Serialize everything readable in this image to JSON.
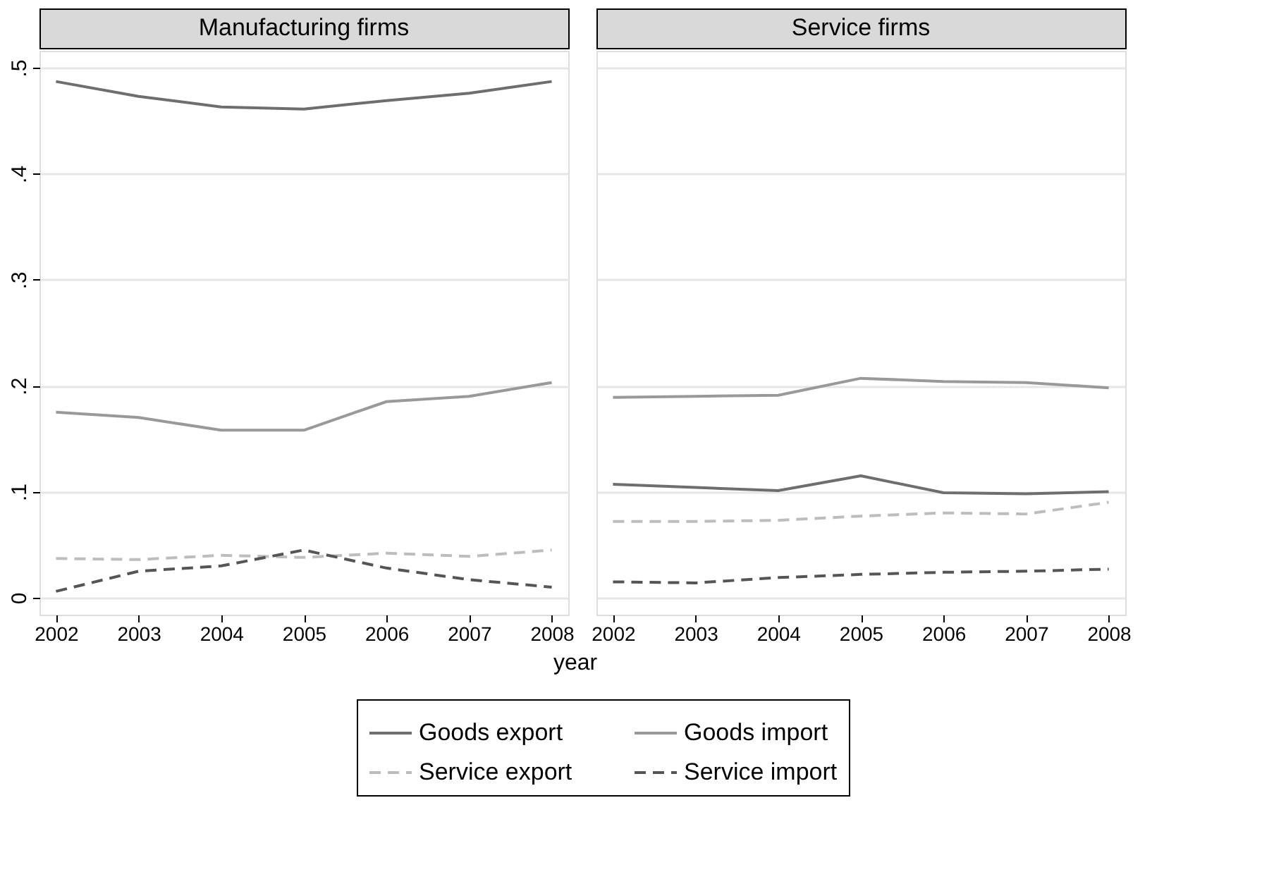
{
  "chart_data": [
    {
      "type": "line",
      "title": "Manufacturing firms",
      "xlabel": "year",
      "x": [
        2002,
        2003,
        2004,
        2005,
        2006,
        2007,
        2008
      ],
      "xlim": [
        2001.8,
        2008.2
      ],
      "xticks": [
        2002,
        2003,
        2004,
        2005,
        2006,
        2007,
        2008
      ],
      "ylim": [
        -0.016,
        0.516
      ],
      "yticks": [
        {
          "value": 0,
          "label": "0"
        },
        {
          "value": 0.1,
          "label": ".1"
        },
        {
          "value": 0.2,
          "label": ".2"
        },
        {
          "value": 0.3,
          "label": ".3"
        },
        {
          "value": 0.4,
          "label": ".4"
        },
        {
          "value": 0.5,
          "label": ".5"
        }
      ],
      "grid": "y",
      "legend": "bottom",
      "series": [
        {
          "name": "Goods export",
          "color": "#6e6e6e",
          "line_style": "solid",
          "values": [
            0.487,
            0.473,
            0.463,
            0.461,
            0.469,
            0.476,
            0.487
          ]
        },
        {
          "name": "Service export",
          "color": "#bdbdbd",
          "line_style": "dashed",
          "values": [
            0.037,
            0.036,
            0.04,
            0.038,
            0.042,
            0.039,
            0.045
          ]
        },
        {
          "name": "Goods import",
          "color": "#999999",
          "line_style": "solid",
          "values": [
            0.175,
            0.17,
            0.158,
            0.158,
            0.185,
            0.19,
            0.203
          ]
        },
        {
          "name": "Service import",
          "color": "#555555",
          "line_style": "dashed",
          "values": [
            0.006,
            0.025,
            0.03,
            0.045,
            0.028,
            0.017,
            0.01
          ]
        }
      ]
    },
    {
      "type": "line",
      "title": "Service firms",
      "x": [
        2002,
        2003,
        2004,
        2005,
        2006,
        2007,
        2008
      ],
      "xlim": [
        2001.8,
        2008.2
      ],
      "xticks": [
        2002,
        2003,
        2004,
        2005,
        2006,
        2007,
        2008
      ],
      "ylim": [
        -0.016,
        0.516
      ],
      "yticks": [
        0,
        0.1,
        0.2,
        0.3,
        0.4,
        0.5
      ],
      "tick_labels": "x",
      "grid": "y",
      "legend": "bottom",
      "series": [
        {
          "name": "Goods export",
          "color": "#6e6e6e",
          "line_style": "solid",
          "values": [
            0.107,
            0.104,
            0.101,
            0.115,
            0.099,
            0.098,
            0.1
          ]
        },
        {
          "name": "Service export",
          "color": "#bdbdbd",
          "line_style": "dashed",
          "values": [
            0.072,
            0.072,
            0.073,
            0.077,
            0.08,
            0.079,
            0.09
          ]
        },
        {
          "name": "Goods import",
          "color": "#999999",
          "line_style": "solid",
          "values": [
            0.189,
            0.19,
            0.191,
            0.207,
            0.204,
            0.203,
            0.198
          ]
        },
        {
          "name": "Service import",
          "color": "#555555",
          "line_style": "dashed",
          "values": [
            0.015,
            0.014,
            0.019,
            0.022,
            0.024,
            0.025,
            0.027
          ]
        }
      ]
    }
  ]
}
